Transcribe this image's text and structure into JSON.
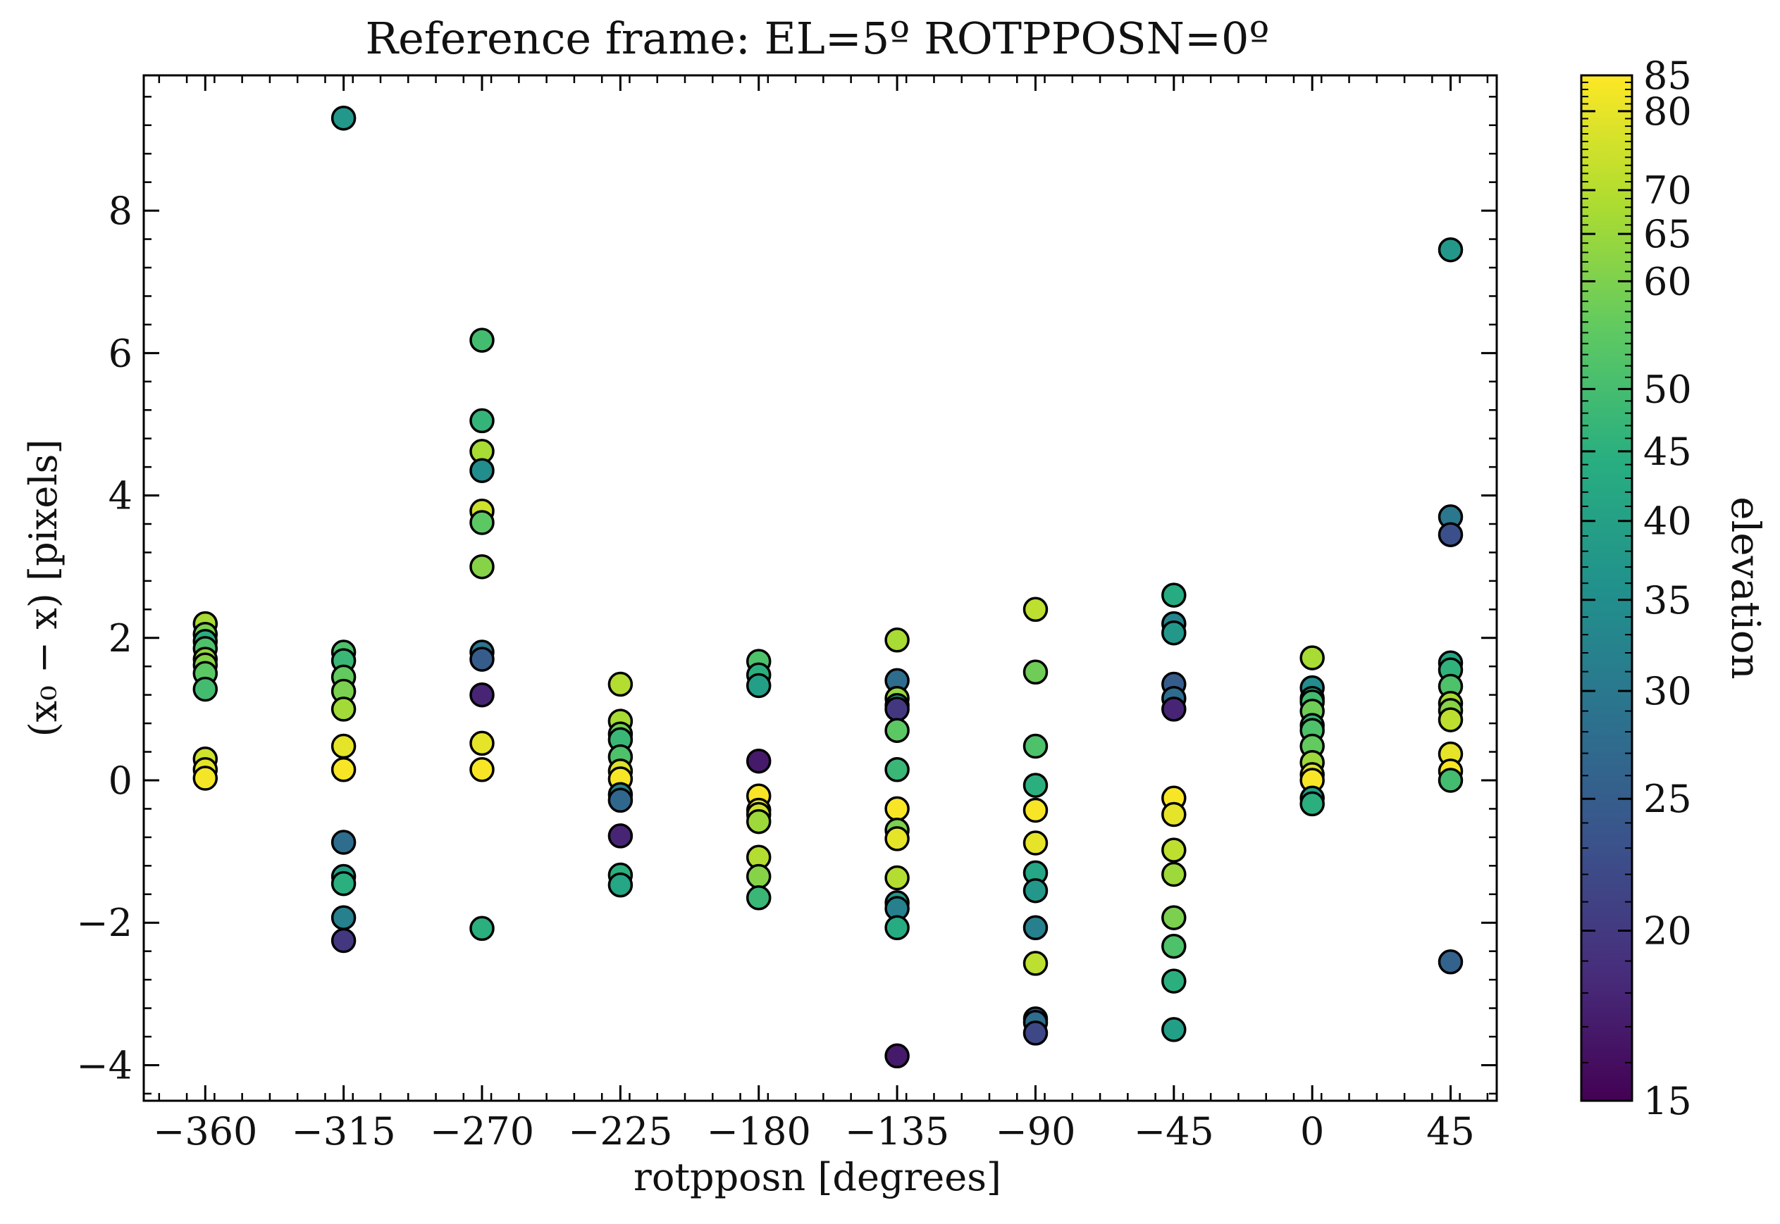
{
  "chart_data": {
    "type": "scatter",
    "title": "Reference frame: EL=5º ROTPPOSN=0º",
    "xlabel": "rotpposn [degrees]",
    "ylabel": "(x₀ − x) [pixels]",
    "colorbar_label": "elevation",
    "colormap": "viridis",
    "xlim": [
      -380,
      60
    ],
    "ylim": [
      -4.5,
      9.9
    ],
    "x_ticks": [
      {
        "value": -360,
        "label": "−360"
      },
      {
        "value": -315,
        "label": "−315"
      },
      {
        "value": -270,
        "label": "−270"
      },
      {
        "value": -225,
        "label": "−225"
      },
      {
        "value": -180,
        "label": "−180"
      },
      {
        "value": -135,
        "label": "−135"
      },
      {
        "value": -90,
        "label": "−90"
      },
      {
        "value": -45,
        "label": "−45"
      },
      {
        "value": 0,
        "label": "0"
      },
      {
        "value": 45,
        "label": "45"
      }
    ],
    "y_ticks": [
      {
        "value": -4,
        "label": "−4"
      },
      {
        "value": -2,
        "label": "−2"
      },
      {
        "value": 0,
        "label": "0"
      },
      {
        "value": 2,
        "label": "2"
      },
      {
        "value": 4,
        "label": "4"
      },
      {
        "value": 6,
        "label": "6"
      },
      {
        "value": 8,
        "label": "8"
      }
    ],
    "colorbar_range": [
      15,
      85
    ],
    "colorbar_ticks": [
      {
        "value": 15,
        "label": "15"
      },
      {
        "value": 20,
        "label": "20"
      },
      {
        "value": 25,
        "label": "25"
      },
      {
        "value": 30,
        "label": "30"
      },
      {
        "value": 35,
        "label": "35"
      },
      {
        "value": 40,
        "label": "40"
      },
      {
        "value": 45,
        "label": "45"
      },
      {
        "value": 50,
        "label": "50"
      },
      {
        "value": 60,
        "label": "60"
      },
      {
        "value": 65,
        "label": "65"
      },
      {
        "value": 70,
        "label": "70"
      },
      {
        "value": 80,
        "label": "80"
      },
      {
        "value": 85,
        "label": "85"
      }
    ],
    "points": [
      {
        "x": -360,
        "y": 2.2,
        "el": 68
      },
      {
        "x": -360,
        "y": 2.05,
        "el": 60
      },
      {
        "x": -360,
        "y": 1.95,
        "el": 45
      },
      {
        "x": -360,
        "y": 1.85,
        "el": 52
      },
      {
        "x": -360,
        "y": 1.7,
        "el": 65
      },
      {
        "x": -360,
        "y": 1.62,
        "el": 62
      },
      {
        "x": -360,
        "y": 1.5,
        "el": 55
      },
      {
        "x": -360,
        "y": 1.28,
        "el": 50
      },
      {
        "x": -360,
        "y": 0.3,
        "el": 75
      },
      {
        "x": -360,
        "y": 0.15,
        "el": 80
      },
      {
        "x": -360,
        "y": 0.03,
        "el": 83
      },
      {
        "x": -315,
        "y": 9.3,
        "el": 38
      },
      {
        "x": -315,
        "y": 1.8,
        "el": 52
      },
      {
        "x": -315,
        "y": 1.68,
        "el": 48
      },
      {
        "x": -315,
        "y": 1.45,
        "el": 56
      },
      {
        "x": -315,
        "y": 1.25,
        "el": 60
      },
      {
        "x": -315,
        "y": 1.0,
        "el": 67
      },
      {
        "x": -315,
        "y": 0.48,
        "el": 80
      },
      {
        "x": -315,
        "y": 0.15,
        "el": 84
      },
      {
        "x": -315,
        "y": -0.87,
        "el": 28
      },
      {
        "x": -315,
        "y": -1.35,
        "el": 40
      },
      {
        "x": -315,
        "y": -1.45,
        "el": 45
      },
      {
        "x": -315,
        "y": -1.93,
        "el": 32
      },
      {
        "x": -315,
        "y": -2.25,
        "el": 20
      },
      {
        "x": -270,
        "y": 6.18,
        "el": 50
      },
      {
        "x": -270,
        "y": 5.05,
        "el": 47
      },
      {
        "x": -270,
        "y": 4.62,
        "el": 68
      },
      {
        "x": -270,
        "y": 4.35,
        "el": 35
      },
      {
        "x": -270,
        "y": 3.78,
        "el": 75
      },
      {
        "x": -270,
        "y": 3.62,
        "el": 55
      },
      {
        "x": -270,
        "y": 3.0,
        "el": 62
      },
      {
        "x": -270,
        "y": 1.8,
        "el": 30
      },
      {
        "x": -270,
        "y": 1.7,
        "el": 25
      },
      {
        "x": -270,
        "y": 1.2,
        "el": 18
      },
      {
        "x": -270,
        "y": 0.52,
        "el": 80
      },
      {
        "x": -270,
        "y": 0.15,
        "el": 84
      },
      {
        "x": -270,
        "y": -2.08,
        "el": 45
      },
      {
        "x": -225,
        "y": 1.35,
        "el": 70
      },
      {
        "x": -225,
        "y": 0.83,
        "el": 68
      },
      {
        "x": -225,
        "y": 0.65,
        "el": 58
      },
      {
        "x": -225,
        "y": 0.57,
        "el": 48
      },
      {
        "x": -225,
        "y": 0.33,
        "el": 52
      },
      {
        "x": -225,
        "y": 0.13,
        "el": 78
      },
      {
        "x": -225,
        "y": 0.02,
        "el": 84
      },
      {
        "x": -225,
        "y": -0.2,
        "el": 33
      },
      {
        "x": -225,
        "y": -0.28,
        "el": 27
      },
      {
        "x": -225,
        "y": -0.78,
        "el": 18
      },
      {
        "x": -225,
        "y": -1.33,
        "el": 45
      },
      {
        "x": -225,
        "y": -1.47,
        "el": 42
      },
      {
        "x": -180,
        "y": 1.67,
        "el": 52
      },
      {
        "x": -180,
        "y": 1.48,
        "el": 45
      },
      {
        "x": -180,
        "y": 1.33,
        "el": 40
      },
      {
        "x": -180,
        "y": 0.27,
        "el": 17
      },
      {
        "x": -180,
        "y": -0.22,
        "el": 84
      },
      {
        "x": -180,
        "y": -0.42,
        "el": 80
      },
      {
        "x": -180,
        "y": -0.48,
        "el": 76
      },
      {
        "x": -180,
        "y": -0.58,
        "el": 66
      },
      {
        "x": -180,
        "y": -1.08,
        "el": 70
      },
      {
        "x": -180,
        "y": -1.35,
        "el": 62
      },
      {
        "x": -180,
        "y": -1.65,
        "el": 48
      },
      {
        "x": -135,
        "y": 1.97,
        "el": 68
      },
      {
        "x": -135,
        "y": 1.4,
        "el": 28
      },
      {
        "x": -135,
        "y": 1.15,
        "el": 65
      },
      {
        "x": -135,
        "y": 1.05,
        "el": 42
      },
      {
        "x": -135,
        "y": 1.0,
        "el": 20
      },
      {
        "x": -135,
        "y": 0.7,
        "el": 55
      },
      {
        "x": -135,
        "y": 0.15,
        "el": 48
      },
      {
        "x": -135,
        "y": -0.4,
        "el": 84
      },
      {
        "x": -135,
        "y": -0.7,
        "el": 60
      },
      {
        "x": -135,
        "y": -0.82,
        "el": 80
      },
      {
        "x": -135,
        "y": -1.37,
        "el": 70
      },
      {
        "x": -135,
        "y": -1.72,
        "el": 38
      },
      {
        "x": -135,
        "y": -1.8,
        "el": 32
      },
      {
        "x": -135,
        "y": -2.07,
        "el": 44
      },
      {
        "x": -135,
        "y": -3.87,
        "el": 17
      },
      {
        "x": -90,
        "y": 2.4,
        "el": 72
      },
      {
        "x": -90,
        "y": 1.52,
        "el": 58
      },
      {
        "x": -90,
        "y": 0.48,
        "el": 52
      },
      {
        "x": -90,
        "y": -0.07,
        "el": 45
      },
      {
        "x": -90,
        "y": -0.42,
        "el": 84
      },
      {
        "x": -90,
        "y": -0.88,
        "el": 80
      },
      {
        "x": -90,
        "y": -1.3,
        "el": 42
      },
      {
        "x": -90,
        "y": -1.55,
        "el": 38
      },
      {
        "x": -90,
        "y": -2.07,
        "el": 32
      },
      {
        "x": -90,
        "y": -2.57,
        "el": 72
      },
      {
        "x": -90,
        "y": -3.35,
        "el": 25
      },
      {
        "x": -90,
        "y": -3.4,
        "el": 28
      },
      {
        "x": -90,
        "y": -3.55,
        "el": 22
      },
      {
        "x": -45,
        "y": 2.6,
        "el": 44
      },
      {
        "x": -45,
        "y": 2.2,
        "el": 33
      },
      {
        "x": -45,
        "y": 2.07,
        "el": 38
      },
      {
        "x": -45,
        "y": 1.35,
        "el": 25
      },
      {
        "x": -45,
        "y": 1.15,
        "el": 28
      },
      {
        "x": -45,
        "y": 1.0,
        "el": 18
      },
      {
        "x": -45,
        "y": -0.25,
        "el": 84
      },
      {
        "x": -45,
        "y": -0.48,
        "el": 80
      },
      {
        "x": -45,
        "y": -0.98,
        "el": 72
      },
      {
        "x": -45,
        "y": -1.32,
        "el": 66
      },
      {
        "x": -45,
        "y": -1.93,
        "el": 60
      },
      {
        "x": -45,
        "y": -2.33,
        "el": 52
      },
      {
        "x": -45,
        "y": -2.82,
        "el": 45
      },
      {
        "x": -45,
        "y": -3.5,
        "el": 40
      },
      {
        "x": 0,
        "y": 1.72,
        "el": 68
      },
      {
        "x": 0,
        "y": 1.3,
        "el": 35
      },
      {
        "x": 0,
        "y": 1.15,
        "el": 45
      },
      {
        "x": 0,
        "y": 1.1,
        "el": 50
      },
      {
        "x": 0,
        "y": 0.97,
        "el": 58
      },
      {
        "x": 0,
        "y": 0.77,
        "el": 48
      },
      {
        "x": 0,
        "y": 0.7,
        "el": 52
      },
      {
        "x": 0,
        "y": 0.48,
        "el": 56
      },
      {
        "x": 0,
        "y": 0.25,
        "el": 66
      },
      {
        "x": 0,
        "y": 0.08,
        "el": 78
      },
      {
        "x": 0,
        "y": 0.0,
        "el": 84
      },
      {
        "x": 0,
        "y": -0.25,
        "el": 40
      },
      {
        "x": 0,
        "y": -0.33,
        "el": 45
      },
      {
        "x": 45,
        "y": 7.45,
        "el": 38
      },
      {
        "x": 45,
        "y": 3.7,
        "el": 30
      },
      {
        "x": 45,
        "y": 3.45,
        "el": 23
      },
      {
        "x": 45,
        "y": 1.65,
        "el": 42
      },
      {
        "x": 45,
        "y": 1.55,
        "el": 46
      },
      {
        "x": 45,
        "y": 1.32,
        "el": 52
      },
      {
        "x": 45,
        "y": 1.08,
        "el": 68
      },
      {
        "x": 45,
        "y": 0.98,
        "el": 62
      },
      {
        "x": 45,
        "y": 0.85,
        "el": 72
      },
      {
        "x": 45,
        "y": 0.37,
        "el": 80
      },
      {
        "x": 45,
        "y": 0.13,
        "el": 84
      },
      {
        "x": 45,
        "y": 0.0,
        "el": 50
      },
      {
        "x": 45,
        "y": -2.55,
        "el": 26
      }
    ]
  }
}
